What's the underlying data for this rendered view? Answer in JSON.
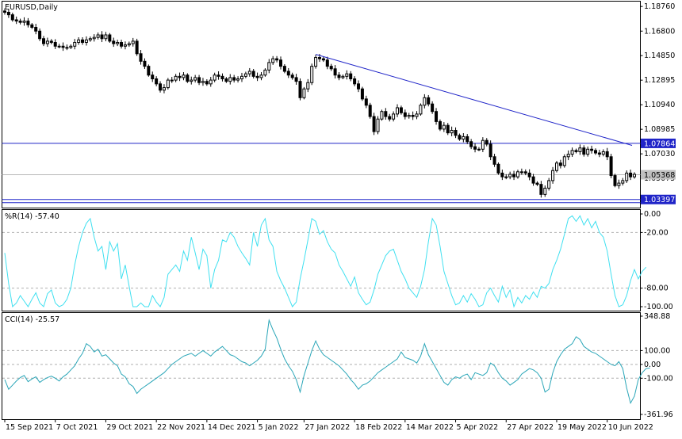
{
  "panels": {
    "price": {
      "title": "EURUSD,Daily",
      "axis_labels": [
        "1.18760",
        "1.16800",
        "1.14850",
        "1.12895",
        "1.10940",
        "1.08985",
        "1.07030",
        "1.05075"
      ],
      "marked_levels": [
        {
          "label": "1.07864",
          "value": 1.07864
        },
        {
          "label": "1.05368",
          "value": 1.05368
        },
        {
          "label": "1.03397",
          "value": 1.03397
        }
      ]
    },
    "williams": {
      "title": "%R(14) -57.40",
      "axis_labels": [
        "0.00",
        "-20.00",
        "-80.00",
        "-100.00"
      ],
      "levels": [
        -20,
        -80
      ]
    },
    "cci": {
      "title": "CCI(14) -25.57",
      "axis_labels": [
        "348.88",
        "100.00",
        "0.00",
        "-100.00",
        "-361.96"
      ],
      "levels": [
        100,
        0,
        -100
      ]
    }
  },
  "date_labels": [
    "15 Sep 2021",
    "7 Oct 2021",
    "29 Oct 2021",
    "22 Nov 2021",
    "14 Dec 2021",
    "5 Jan 2022",
    "27 Jan 2022",
    "18 Feb 2022",
    "14 Mar 2022",
    "5 Apr 2022",
    "27 Apr 2022",
    "19 May 2022",
    "10 Jun 2022"
  ],
  "colors": {
    "candle": "#000000",
    "trendline": "#1f24c8",
    "hline": "#1f24c8",
    "williams_line": "#40e0f0",
    "cci_line": "#2aa6b8",
    "grid": "#b0b0b0"
  },
  "chart_data": [
    {
      "type": "line",
      "title": "EURUSD,Daily",
      "ylim": [
        1.0275,
        1.1915
      ],
      "series": [
        {
          "name": "EURUSD,Daily",
          "values": [
            1.183,
            1.181,
            1.177,
            1.176,
            1.175,
            1.176,
            1.173,
            1.171,
            1.168,
            1.162,
            1.158,
            1.16,
            1.159,
            1.156,
            1.156,
            1.155,
            1.155,
            1.156,
            1.159,
            1.161,
            1.159,
            1.161,
            1.162,
            1.163,
            1.165,
            1.162,
            1.165,
            1.16,
            1.158,
            1.159,
            1.156,
            1.157,
            1.158,
            1.16,
            1.15,
            1.144,
            1.14,
            1.133,
            1.13,
            1.126,
            1.121,
            1.123,
            1.129,
            1.129,
            1.132,
            1.131,
            1.133,
            1.128,
            1.129,
            1.131,
            1.127,
            1.128,
            1.126,
            1.129,
            1.133,
            1.132,
            1.13,
            1.128,
            1.131,
            1.129,
            1.13,
            1.132,
            1.134,
            1.136,
            1.132,
            1.131,
            1.133,
            1.137,
            1.143,
            1.146,
            1.145,
            1.14,
            1.136,
            1.133,
            1.131,
            1.128,
            1.115,
            1.122,
            1.127,
            1.14,
            1.147,
            1.146,
            1.145,
            1.14,
            1.138,
            1.133,
            1.131,
            1.132,
            1.134,
            1.13,
            1.126,
            1.122,
            1.114,
            1.109,
            1.1,
            1.088,
            1.098,
            1.104,
            1.1,
            1.098,
            1.102,
            1.107,
            1.103,
            1.1,
            1.101,
            1.1,
            1.102,
            1.109,
            1.115,
            1.11,
            1.104,
            1.096,
            1.09,
            1.093,
            1.087,
            1.089,
            1.085,
            1.082,
            1.084,
            1.08,
            1.076,
            1.074,
            1.074,
            1.081,
            1.078,
            1.068,
            1.062,
            1.055,
            1.052,
            1.052,
            1.054,
            1.052,
            1.056,
            1.056,
            1.055,
            1.052,
            1.047,
            1.046,
            1.038,
            1.043,
            1.049,
            1.057,
            1.063,
            1.061,
            1.068,
            1.07,
            1.073,
            1.072,
            1.075,
            1.07,
            1.074,
            1.073,
            1.071,
            1.07,
            1.072,
            1.068,
            1.053,
            1.045,
            1.047,
            1.049,
            1.055,
            1.052,
            1.054
          ]
        }
      ]
    },
    {
      "type": "line",
      "title": "%R(14) -57.40",
      "ylim": [
        -100,
        0
      ],
      "series": [
        {
          "name": "%R(14)",
          "values": [
            -42,
            -75,
            -100,
            -96,
            -88,
            -94,
            -100,
            -92,
            -85,
            -96,
            -100,
            -86,
            -82,
            -96,
            -100,
            -98,
            -92,
            -80,
            -55,
            -35,
            -20,
            -10,
            -5,
            -25,
            -40,
            -35,
            -60,
            -30,
            -40,
            -32,
            -70,
            -55,
            -78,
            -100,
            -100,
            -96,
            -100,
            -100,
            -88,
            -95,
            -100,
            -90,
            -65,
            -60,
            -55,
            -62,
            -40,
            -50,
            -25,
            -42,
            -60,
            -38,
            -45,
            -80,
            -60,
            -50,
            -28,
            -30,
            -20,
            -25,
            -35,
            -42,
            -48,
            -55,
            -20,
            -35,
            -12,
            -5,
            -28,
            -35,
            -62,
            -72,
            -80,
            -90,
            -100,
            -95,
            -70,
            -50,
            -28,
            -5,
            -8,
            -22,
            -18,
            -30,
            -38,
            -42,
            -55,
            -62,
            -70,
            -78,
            -68,
            -85,
            -92,
            -98,
            -95,
            -82,
            -65,
            -55,
            -45,
            -40,
            -38,
            -50,
            -62,
            -70,
            -80,
            -85,
            -90,
            -78,
            -60,
            -30,
            -5,
            -12,
            -35,
            -62,
            -75,
            -88,
            -98,
            -96,
            -88,
            -95,
            -86,
            -92,
            -100,
            -98,
            -85,
            -80,
            -88,
            -95,
            -78,
            -90,
            -82,
            -100,
            -90,
            -96,
            -88,
            -92,
            -84,
            -90,
            -78,
            -80,
            -75,
            -60,
            -50,
            -38,
            -22,
            -5,
            -2,
            -8,
            -2,
            -12,
            -5,
            -15,
            -8,
            -20,
            -25,
            -40,
            -65,
            -88,
            -100,
            -98,
            -88,
            -72,
            -60,
            -70,
            -62,
            -57.4
          ]
        }
      ]
    },
    {
      "type": "line",
      "title": "CCI(14) -25.57",
      "ylim": [
        -361.96,
        348.88
      ],
      "series": [
        {
          "name": "CCI(14)",
          "values": [
            -110,
            -180,
            -150,
            -120,
            -95,
            -80,
            -125,
            -105,
            -90,
            -130,
            -110,
            -95,
            -85,
            -100,
            -120,
            -90,
            -70,
            -40,
            -10,
            40,
            80,
            150,
            130,
            90,
            110,
            60,
            70,
            40,
            10,
            -10,
            -70,
            -90,
            -140,
            -160,
            -210,
            -180,
            -160,
            -140,
            -120,
            -100,
            -80,
            -60,
            -30,
            0,
            20,
            40,
            60,
            70,
            80,
            60,
            80,
            100,
            80,
            60,
            90,
            110,
            130,
            100,
            70,
            60,
            40,
            20,
            10,
            -10,
            10,
            30,
            60,
            110,
            320,
            250,
            190,
            110,
            40,
            -10,
            -50,
            -110,
            -200,
            -80,
            10,
            100,
            170,
            110,
            70,
            50,
            30,
            10,
            -10,
            -40,
            -70,
            -110,
            -140,
            -180,
            -150,
            -140,
            -120,
            -90,
            -60,
            -40,
            -20,
            0,
            20,
            40,
            90,
            50,
            40,
            30,
            10,
            60,
            150,
            70,
            20,
            -30,
            -80,
            -130,
            -150,
            -110,
            -90,
            -100,
            -80,
            -70,
            -110,
            -60,
            -70,
            -80,
            -60,
            10,
            -10,
            -60,
            -100,
            -120,
            -150,
            -130,
            -110,
            -70,
            -50,
            -30,
            -40,
            -60,
            -100,
            -200,
            -180,
            -60,
            20,
            70,
            110,
            130,
            150,
            200,
            180,
            130,
            110,
            90,
            80,
            60,
            40,
            20,
            0,
            -10,
            20,
            -30,
            -170,
            -280,
            -230,
            -110,
            -60,
            -30,
            -25.57
          ]
        }
      ]
    }
  ]
}
